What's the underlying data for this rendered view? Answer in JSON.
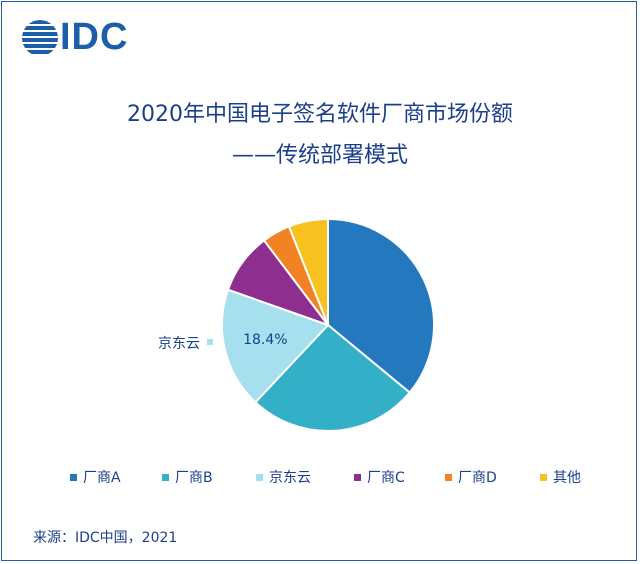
{
  "logo": {
    "text": "IDC"
  },
  "title_line1": "2020年中国电子签名软件厂商市场份额",
  "title_line2": "——传统部署模式",
  "source": "来源：IDC中国，2021",
  "chart_data": {
    "type": "pie",
    "slices": [
      {
        "label": "厂商A",
        "value": 36.0,
        "color": "#2479be"
      },
      {
        "label": "厂商B",
        "value": 26.0,
        "color": "#33b0c8"
      },
      {
        "label": "京东云",
        "value": 18.4,
        "color": "#a6dfed",
        "data_label": "18.4%"
      },
      {
        "label": "厂商C",
        "value": 9.3,
        "color": "#8e2f8f"
      },
      {
        "label": "厂商D",
        "value": 4.3,
        "color": "#f28224"
      },
      {
        "label": "其他",
        "value": 6.0,
        "color": "#f7c21f"
      }
    ],
    "callout": {
      "label": "京东云",
      "value_text": "18.4%"
    },
    "legend_position": "bottom"
  }
}
